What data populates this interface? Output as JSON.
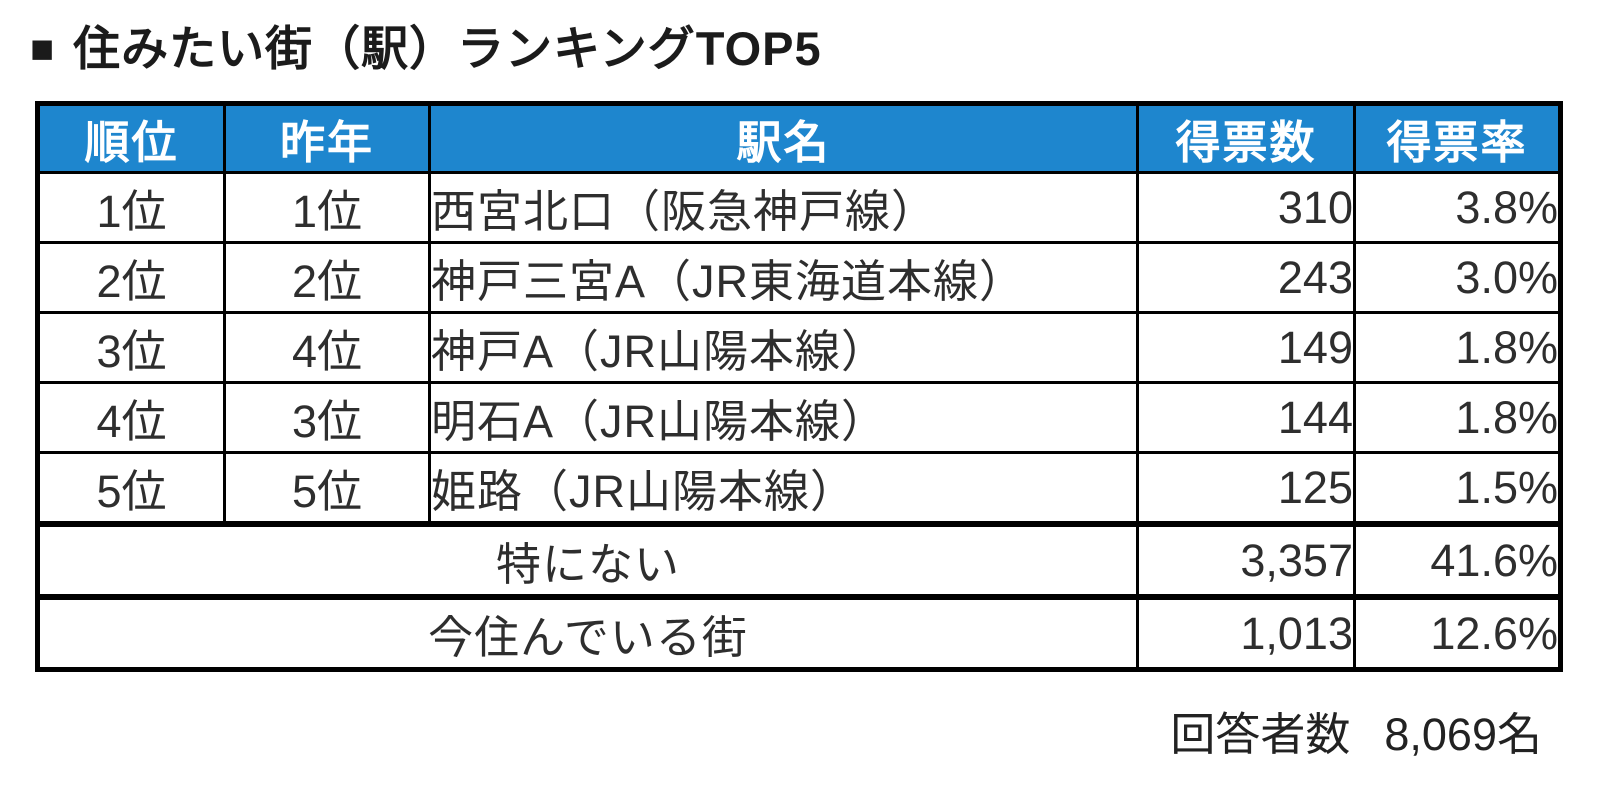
{
  "title": {
    "bullet": "■",
    "text": "住みたい街（駅）ランキングTOP5"
  },
  "table": {
    "header_bg": "#1e86ce",
    "border_color": "#000000",
    "columns": [
      "順位",
      "昨年",
      "駅名",
      "得票数",
      "得票率"
    ],
    "rows": [
      {
        "rank": "1位",
        "last_year": "1位",
        "station": "西宮北口（阪急神戸線）",
        "votes": "310",
        "rate": "3.8%"
      },
      {
        "rank": "2位",
        "last_year": "2位",
        "station": "神戸三宮A（JR東海道本線）",
        "votes": "243",
        "rate": "3.0%"
      },
      {
        "rank": "3位",
        "last_year": "4位",
        "station": "神戸A（JR山陽本線）",
        "votes": "149",
        "rate": "1.8%"
      },
      {
        "rank": "4位",
        "last_year": "3位",
        "station": "明石A（JR山陽本線）",
        "votes": "144",
        "rate": "1.8%"
      },
      {
        "rank": "5位",
        "last_year": "5位",
        "station": "姫路（JR山陽本線）",
        "votes": "125",
        "rate": "1.5%"
      }
    ],
    "summary_rows": [
      {
        "label": "特にない",
        "votes": "3,357",
        "rate": "41.6%"
      },
      {
        "label": "今住んでいる街",
        "votes": "1,013",
        "rate": "12.6%"
      }
    ]
  },
  "footer": {
    "label": "回答者数",
    "value": "8,069名"
  }
}
